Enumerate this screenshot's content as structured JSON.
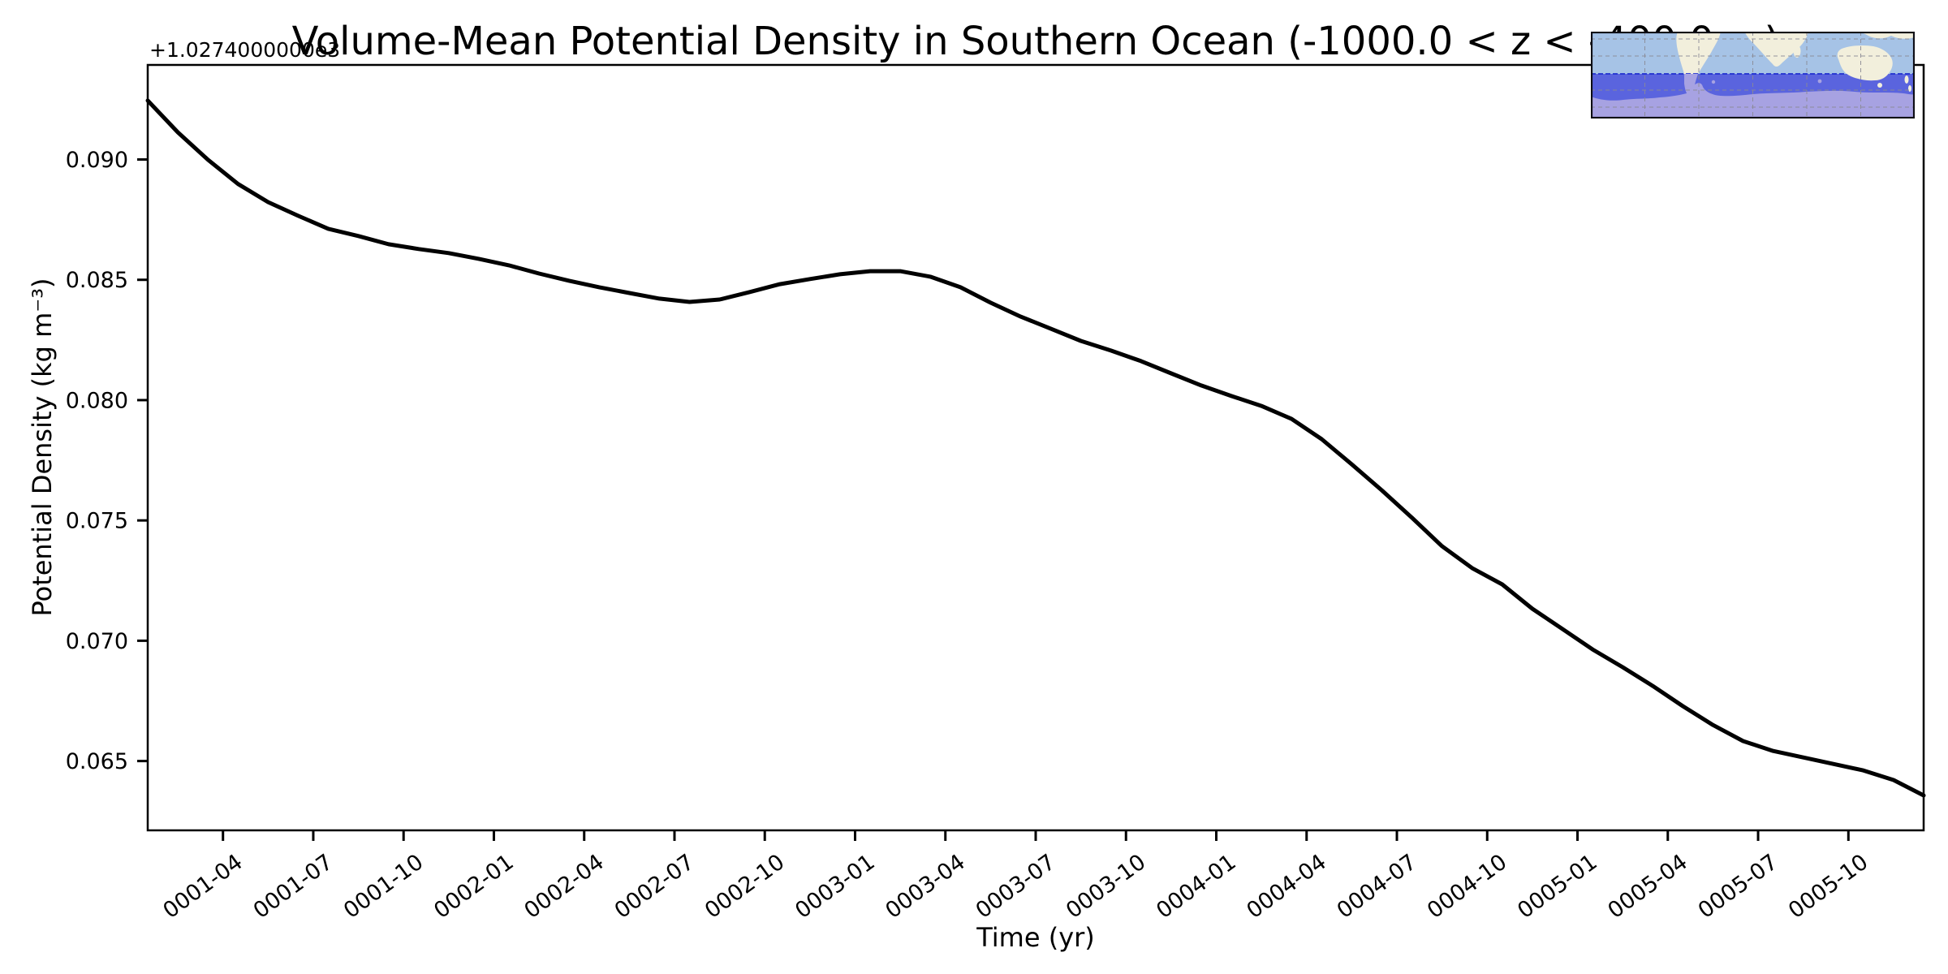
{
  "figure": {
    "title": "Volume-Mean Potential Density in Southern Ocean (-1000.0 < z < -400.0 m)",
    "xlabel": "Time (yr)",
    "ylabel": "Potential Density (kg m⁻³)",
    "y_offset_text": "+1.0274000000e3"
  },
  "chart_data": {
    "type": "line",
    "title": "Volume-Mean Potential Density in Southern Ocean (-1000.0 < z < -400.0 m)",
    "xlabel": "Time (yr)",
    "ylabel": "Potential Density (kg m⁻³)",
    "y_axis_offset_text": "+1.0274000000e3",
    "y_offset": 1027.4,
    "line_color": "#000000",
    "line_width": 5,
    "grid": false,
    "legend": null,
    "ylim": [
      0.06212,
      0.09393
    ],
    "x": [
      "0001-01",
      "0001-02",
      "0001-03",
      "0001-04",
      "0001-05",
      "0001-06",
      "0001-07",
      "0001-08",
      "0001-09",
      "0001-10",
      "0001-11",
      "0001-12",
      "0002-01",
      "0002-02",
      "0002-03",
      "0002-04",
      "0002-05",
      "0002-06",
      "0002-07",
      "0002-08",
      "0002-09",
      "0002-10",
      "0002-11",
      "0002-12",
      "0003-01",
      "0003-02",
      "0003-03",
      "0003-04",
      "0003-05",
      "0003-06",
      "0003-07",
      "0003-08",
      "0003-09",
      "0003-10",
      "0003-11",
      "0003-12",
      "0004-01",
      "0004-02",
      "0004-03",
      "0004-04",
      "0004-05",
      "0004-06",
      "0004-07",
      "0004-08",
      "0004-09",
      "0004-10",
      "0004-11",
      "0004-12",
      "0005-01",
      "0005-02",
      "0005-03",
      "0005-04",
      "0005-05",
      "0005-06",
      "0005-07",
      "0005-08",
      "0005-09",
      "0005-10",
      "0005-11",
      "0005-12"
    ],
    "values": [
      0.09245,
      0.09113,
      0.08999,
      0.08898,
      0.08823,
      0.08766,
      0.08712,
      0.08682,
      0.08648,
      0.08628,
      0.08611,
      0.08587,
      0.0856,
      0.08526,
      0.08496,
      0.08469,
      0.08445,
      0.08422,
      0.08408,
      0.08418,
      0.08449,
      0.08482,
      0.08503,
      0.08523,
      0.08536,
      0.08536,
      0.08513,
      0.08469,
      0.08405,
      0.08347,
      0.08297,
      0.08246,
      0.08206,
      0.08162,
      0.08111,
      0.08061,
      0.08017,
      0.07976,
      0.07922,
      0.07838,
      0.07733,
      0.07625,
      0.07511,
      0.07393,
      0.07302,
      0.07234,
      0.07133,
      0.07049,
      0.06964,
      0.0689,
      0.06812,
      0.06728,
      0.0665,
      0.06583,
      0.06542,
      0.06515,
      0.06488,
      0.06461,
      0.06421,
      0.06357
    ],
    "x_tick_labels": [
      "0001-04",
      "0001-07",
      "0001-10",
      "0002-01",
      "0002-04",
      "0002-07",
      "0002-10",
      "0003-01",
      "0003-04",
      "0003-07",
      "0003-10",
      "0004-01",
      "0004-04",
      "0004-07",
      "0004-10",
      "0005-01",
      "0005-04",
      "0005-07",
      "0005-10"
    ],
    "y_ticks": {
      "labels": [
        "0.065",
        "0.070",
        "0.075",
        "0.080",
        "0.085",
        "0.090"
      ],
      "values": [
        0.065,
        0.07,
        0.075,
        0.08,
        0.085,
        0.09
      ]
    }
  },
  "inset_map": {
    "description": "world map inset highlighting the Southern Ocean region",
    "colors": {
      "ocean": "#a6c3e6",
      "land": "#f2efdc",
      "region_ocean": "#5a64de",
      "region_land": "#a7a2e2",
      "boundary": "#2030cf",
      "gridline": "#8a8a94",
      "border": "#0d0d15"
    }
  }
}
